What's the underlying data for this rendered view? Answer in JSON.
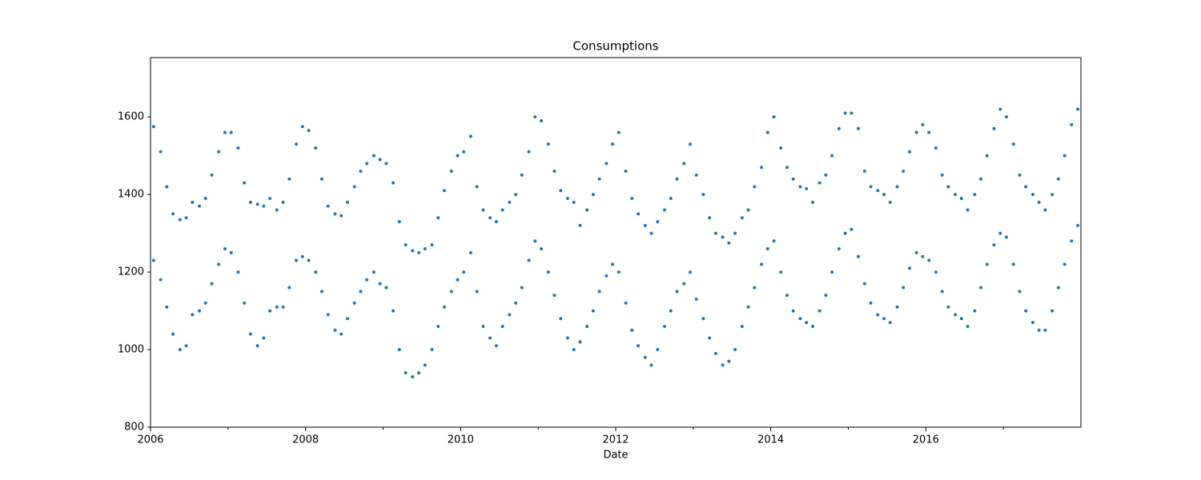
{
  "chart_data": {
    "type": "scatter",
    "title": "Consumptions",
    "x_label": "Date",
    "x": [
      2006.04,
      2006.13,
      2006.21,
      2006.29,
      2006.38,
      2006.46,
      2006.54,
      2006.63,
      2006.71,
      2006.79,
      2006.88,
      2006.96,
      2007.04,
      2007.13,
      2007.21,
      2007.29,
      2007.38,
      2007.46,
      2007.54,
      2007.63,
      2007.71,
      2007.79,
      2007.88,
      2007.96,
      2008.04,
      2008.13,
      2008.21,
      2008.29,
      2008.38,
      2008.46,
      2008.54,
      2008.63,
      2008.71,
      2008.79,
      2008.88,
      2008.96,
      2009.04,
      2009.13,
      2009.21,
      2009.29,
      2009.38,
      2009.46,
      2009.54,
      2009.63,
      2009.71,
      2009.79,
      2009.88,
      2009.96,
      2010.04,
      2010.13,
      2010.21,
      2010.29,
      2010.38,
      2010.46,
      2010.54,
      2010.63,
      2010.71,
      2010.79,
      2010.88,
      2010.96,
      2011.04,
      2011.13,
      2011.21,
      2011.29,
      2011.38,
      2011.46,
      2011.54,
      2011.63,
      2011.71,
      2011.79,
      2011.88,
      2011.96,
      2012.04,
      2012.13,
      2012.21,
      2012.29,
      2012.38,
      2012.46,
      2012.54,
      2012.63,
      2012.71,
      2012.79,
      2012.88,
      2012.96,
      2013.04,
      2013.13,
      2013.21,
      2013.29,
      2013.38,
      2013.46,
      2013.54,
      2013.63,
      2013.71,
      2013.79,
      2013.88,
      2013.96,
      2014.04,
      2014.13,
      2014.21,
      2014.29,
      2014.38,
      2014.46,
      2014.54,
      2014.63,
      2014.71,
      2014.79,
      2014.88,
      2014.96,
      2015.04,
      2015.13,
      2015.21,
      2015.29,
      2015.38,
      2015.46,
      2015.54,
      2015.63,
      2015.71,
      2015.79,
      2015.88,
      2015.96,
      2016.04,
      2016.13,
      2016.21,
      2016.29,
      2016.38,
      2016.46,
      2016.54,
      2016.63,
      2016.71,
      2016.79,
      2016.88,
      2016.96,
      2017.04,
      2017.13,
      2017.21,
      2017.29,
      2017.38,
      2017.46,
      2017.54,
      2017.63,
      2017.71,
      2017.79,
      2017.88,
      2017.96
    ],
    "series": [
      {
        "color": "#1f77b4",
        "values": [
          1575,
          1510,
          1420,
          1350,
          1335,
          1340,
          1380,
          1370,
          1390,
          1450,
          1510,
          1560,
          1560,
          1520,
          1430,
          1380,
          1375,
          1370,
          1390,
          1360,
          1380,
          1440,
          1530,
          1575,
          1565,
          1520,
          1440,
          1370,
          1350,
          1345,
          1380,
          1420,
          1460,
          1480,
          1500,
          1490,
          1480,
          1430,
          1330,
          1270,
          1255,
          1250,
          1260,
          1270,
          1340,
          1410,
          1460,
          1500,
          1510,
          1550,
          1420,
          1360,
          1340,
          1330,
          1360,
          1380,
          1400,
          1450,
          1510,
          1600,
          1590,
          1530,
          1460,
          1410,
          1390,
          1380,
          1320,
          1360,
          1400,
          1440,
          1480,
          1530,
          1560,
          1460,
          1390,
          1350,
          1320,
          1300,
          1330,
          1360,
          1390,
          1440,
          1480,
          1530,
          1450,
          1400,
          1340,
          1300,
          1290,
          1275,
          1300,
          1340,
          1360,
          1420,
          1470,
          1560,
          1600,
          1520,
          1470,
          1440,
          1420,
          1415,
          1380,
          1430,
          1450,
          1500,
          1570,
          1610,
          1610,
          1570,
          1460,
          1420,
          1410,
          1400,
          1380,
          1420,
          1460,
          1510,
          1560,
          1580,
          1560,
          1520,
          1450,
          1420,
          1400,
          1390,
          1360,
          1400,
          1440,
          1500,
          1570,
          1620,
          1600,
          1530,
          1450,
          1420,
          1400,
          1380,
          1360,
          1400,
          1440,
          1500,
          1580,
          1620
        ]
      },
      {
        "color": "#1f77b4",
        "values": [
          1230,
          1180,
          1110,
          1040,
          1000,
          1010,
          1090,
          1100,
          1120,
          1170,
          1220,
          1260,
          1250,
          1200,
          1120,
          1040,
          1010,
          1030,
          1100,
          1110,
          1110,
          1160,
          1230,
          1240,
          1230,
          1200,
          1150,
          1090,
          1050,
          1040,
          1080,
          1120,
          1150,
          1180,
          1200,
          1170,
          1160,
          1100,
          1000,
          940,
          930,
          940,
          960,
          1000,
          1060,
          1110,
          1150,
          1180,
          1200,
          1250,
          1150,
          1060,
          1030,
          1010,
          1060,
          1090,
          1120,
          1160,
          1230,
          1280,
          1260,
          1200,
          1140,
          1080,
          1030,
          1000,
          1020,
          1060,
          1100,
          1150,
          1190,
          1220,
          1200,
          1120,
          1050,
          1010,
          980,
          960,
          1000,
          1060,
          1100,
          1150,
          1170,
          1200,
          1130,
          1080,
          1030,
          990,
          960,
          970,
          1000,
          1060,
          1110,
          1160,
          1220,
          1260,
          1280,
          1200,
          1140,
          1100,
          1080,
          1070,
          1060,
          1100,
          1140,
          1200,
          1260,
          1300,
          1310,
          1240,
          1170,
          1120,
          1090,
          1080,
          1070,
          1110,
          1160,
          1210,
          1250,
          1240,
          1230,
          1200,
          1150,
          1110,
          1090,
          1080,
          1060,
          1100,
          1160,
          1220,
          1270,
          1300,
          1290,
          1220,
          1150,
          1100,
          1070,
          1050,
          1050,
          1100,
          1160,
          1220,
          1280,
          1320
        ]
      }
    ],
    "xlim": [
      2006,
      2018
    ],
    "xticks": [
      2006,
      2008,
      2010,
      2012,
      2014,
      2016
    ],
    "xminorticks": [
      2007,
      2009,
      2011,
      2013,
      2015,
      2017
    ],
    "ylim": [
      800,
      1753
    ],
    "yticks": [
      800,
      1000,
      1200,
      1400,
      1600
    ],
    "grid": false
  }
}
